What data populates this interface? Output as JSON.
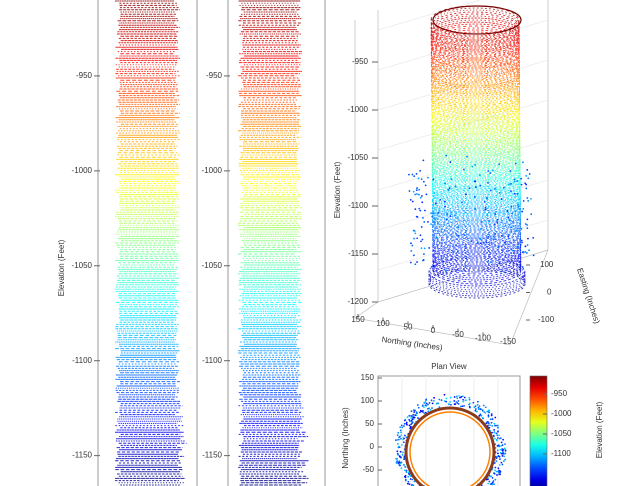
{
  "chart_data": [
    {
      "type": "strip",
      "y_label": "Elevation (Feet)",
      "ylim": [
        -1166,
        -910
      ],
      "yticks": [
        -950,
        -1000,
        -1050,
        -1100,
        -1150
      ],
      "colormap": "jet"
    },
    {
      "type": "strip",
      "ylim": [
        -1166,
        -910
      ],
      "yticks": [
        -950,
        -1000,
        -1050,
        -1100,
        -1150
      ],
      "colormap": "jet"
    },
    {
      "type": "scatter3d",
      "z_label": "Elevation (Feet)",
      "x_label": "Northing (Inches)",
      "y_label": "Easting (Inches)",
      "zlim": [
        -1200,
        -900
      ],
      "zticks": [
        -950,
        -1000,
        -1050,
        -1100,
        -1150,
        -1200
      ],
      "xlim": [
        -150,
        150
      ],
      "xticks": [
        150,
        100,
        50,
        0,
        -50,
        -100,
        -150
      ],
      "ylim": [
        -100,
        100
      ],
      "yticks": [
        100,
        0,
        -100
      ],
      "colormap": "jet"
    },
    {
      "type": "plan",
      "title": "Plan View",
      "y_label": "Northing (Inches)",
      "ylim": [
        -130,
        155
      ],
      "yticks": [
        150,
        100,
        50,
        0,
        -50
      ],
      "colorbar": {
        "label": "Elevation (Feet)",
        "lim": [
          -1180,
          -905
        ],
        "ticks": [
          -950,
          -1000,
          -1050,
          -1100
        ]
      },
      "colormap": "jet"
    }
  ]
}
